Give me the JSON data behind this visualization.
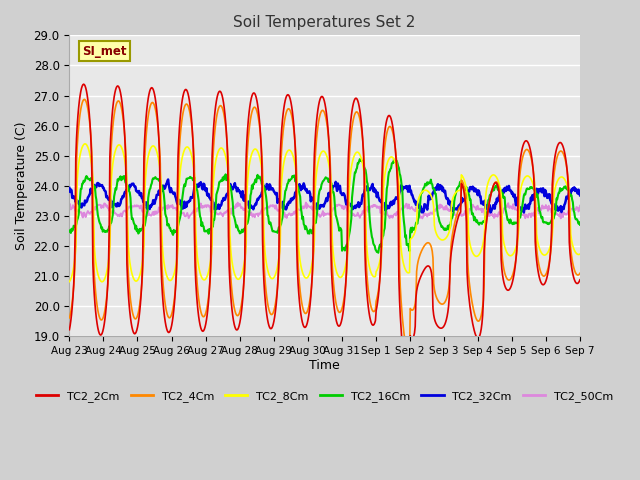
{
  "title": "Soil Temperatures Set 2",
  "xlabel": "Time",
  "ylabel": "Soil Temperature (C)",
  "ylim": [
    19.0,
    29.0
  ],
  "yticks": [
    19.0,
    20.0,
    21.0,
    22.0,
    23.0,
    24.0,
    25.0,
    26.0,
    27.0,
    28.0,
    29.0
  ],
  "x_labels": [
    "Aug 23",
    "Aug 24",
    "Aug 25",
    "Aug 26",
    "Aug 27",
    "Aug 28",
    "Aug 29",
    "Aug 30",
    "Aug 31",
    "Sep 1",
    "Sep 2",
    "Sep 3",
    "Sep 4",
    "Sep 5",
    "Sep 6",
    "Sep 7"
  ],
  "colors": {
    "TC2_2Cm": "#dd0000",
    "TC2_4Cm": "#ff8800",
    "TC2_8Cm": "#ffff00",
    "TC2_16Cm": "#00cc00",
    "TC2_32Cm": "#0000dd",
    "TC2_50Cm": "#dd88dd"
  },
  "legend_label": "SI_met",
  "bg_color": "#e8e8e8",
  "fig_color": "#d0d0d0"
}
